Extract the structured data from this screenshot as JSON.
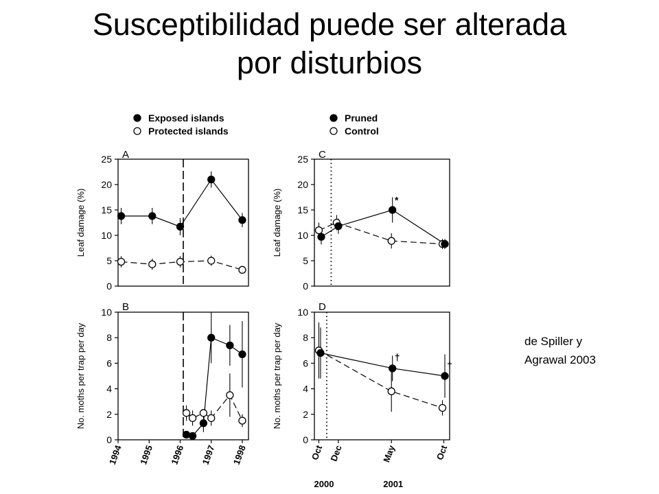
{
  "slide": {
    "title_line1": "Susceptibilidad puede ser alterada",
    "title_line2": "por disturbios",
    "credit_line1": "de Spiller y",
    "credit_line2": "Agrawal 2003"
  },
  "colors": {
    "ink": "#000000",
    "background": "#ffffff"
  },
  "chart_data": [
    {
      "panel": "A",
      "type": "line",
      "ylabel": "Leaf damage (%)",
      "ylim": [
        0,
        25
      ],
      "yticks": [
        0,
        5,
        10,
        15,
        20,
        25
      ],
      "xlim": [
        1994,
        1998.2
      ],
      "legend": [
        "Exposed islands",
        "Protected islands"
      ],
      "vline": {
        "x": 1996.1,
        "style": "dashed"
      },
      "series": [
        {
          "name": "Exposed islands",
          "marker": "filled",
          "line": "solid",
          "x": [
            1994.1,
            1995.1,
            1996,
            1997,
            1998
          ],
          "y": [
            13.8,
            13.8,
            11.7,
            21,
            13
          ],
          "err": [
            1.6,
            1.6,
            1.7,
            1.6,
            1.4
          ]
        },
        {
          "name": "Protected islands",
          "marker": "open",
          "line": "dashed",
          "x": [
            1994.1,
            1995.1,
            1996,
            1997,
            1998
          ],
          "y": [
            4.8,
            4.3,
            4.8,
            5,
            3.2
          ],
          "err": [
            1.1,
            1.1,
            1.1,
            1.0,
            0
          ]
        }
      ]
    },
    {
      "panel": "B",
      "type": "line",
      "ylabel": "No. moths per trap per day",
      "ylim": [
        0,
        10
      ],
      "yticks": [
        0,
        2,
        4,
        6,
        8,
        10
      ],
      "xlim": [
        1994,
        1998.2
      ],
      "xticks": [
        "1994",
        "1995",
        "1996",
        "1997",
        "1998"
      ],
      "vline": {
        "x": 1996.1,
        "style": "dashed"
      },
      "series": [
        {
          "name": "Exposed islands",
          "marker": "filled",
          "line": "solid",
          "x": [
            1996.2,
            1996.4,
            1996.75,
            1997,
            1997.6,
            1998
          ],
          "y": [
            0.4,
            0.3,
            1.3,
            8,
            7.4,
            6.7
          ],
          "err": [
            0,
            0,
            0.7,
            2.0,
            1.6,
            2.6
          ]
        },
        {
          "name": "Protected islands",
          "marker": "open",
          "line": "dashed",
          "x": [
            1996.2,
            1996.4,
            1996.75,
            1997,
            1997.6,
            1998
          ],
          "y": [
            2.1,
            1.7,
            2.1,
            1.7,
            3.5,
            1.5
          ],
          "err": [
            0.6,
            0.6,
            0,
            0.6,
            1.7,
            0.5
          ]
        }
      ]
    },
    {
      "panel": "C",
      "type": "line",
      "ylabel": "Leaf damage (%)",
      "ylim": [
        0,
        25
      ],
      "yticks": [
        0,
        5,
        10,
        15,
        20,
        25
      ],
      "xlim": [
        "2000-09-22",
        "2001-10-22"
      ],
      "legend": [
        "Pruned",
        "Control"
      ],
      "vline": {
        "x": "2000-11-10",
        "style": "dotted"
      },
      "annotations": [
        {
          "text": "*",
          "x": "2001-05-20",
          "y": 16.3
        }
      ],
      "series": [
        {
          "name": "Pruned",
          "marker": "filled",
          "line": "solid",
          "x": [
            "2000-10-12",
            "2000-12-01",
            "2001-05-08",
            "2001-10-08"
          ],
          "y": [
            9.7,
            11.8,
            15,
            8.3
          ],
          "err": [
            1.5,
            1.5,
            2.5,
            1.0
          ]
        },
        {
          "name": "Control",
          "marker": "open",
          "line": "dashed",
          "x": [
            "2000-10-05",
            "2000-11-26",
            "2001-05-05",
            "2001-10-01"
          ],
          "y": [
            11,
            12.5,
            8.9,
            8.3
          ],
          "err": [
            1.5,
            1.5,
            1.5,
            1.0
          ]
        }
      ]
    },
    {
      "panel": "D",
      "type": "line",
      "ylabel": "No. moths per trap per day",
      "ylim": [
        0,
        10
      ],
      "yticks": [
        0,
        2,
        4,
        6,
        8,
        10
      ],
      "xlim": [
        "2000-09-22",
        "2001-10-22"
      ],
      "xticks": [
        {
          "label": "Oct",
          "x": "2000-10-05"
        },
        {
          "label": "Dec",
          "x": "2000-12-01"
        },
        {
          "label": "May",
          "x": "2001-05-05"
        },
        {
          "label": "Oct",
          "x": "2001-10-05"
        }
      ],
      "year_labels": [
        {
          "label": "2000",
          "x": "2000-10-20"
        },
        {
          "label": "2001",
          "x": "2001-05-10"
        }
      ],
      "vline": {
        "x": "2000-10-28",
        "style": "dotted"
      },
      "annotations": [
        {
          "text": "†",
          "x": "2001-05-22",
          "y": 6.2
        },
        {
          "text": "†",
          "x": "2001-10-22",
          "y": 5.6
        }
      ],
      "series": [
        {
          "name": "Pruned",
          "marker": "filled",
          "line": "solid",
          "x": [
            "2000-10-10",
            "2001-05-08",
            "2001-10-08"
          ],
          "y": [
            6.8,
            5.6,
            5
          ],
          "err": [
            2.0,
            1.0,
            1.7
          ]
        },
        {
          "name": "Control",
          "marker": "open",
          "line": "dashed",
          "x": [
            "2000-10-05",
            "2001-05-05",
            "2001-10-01"
          ],
          "y": [
            7,
            3.8,
            2.5
          ],
          "err": [
            2.2,
            1.6,
            0.6
          ]
        }
      ]
    }
  ]
}
